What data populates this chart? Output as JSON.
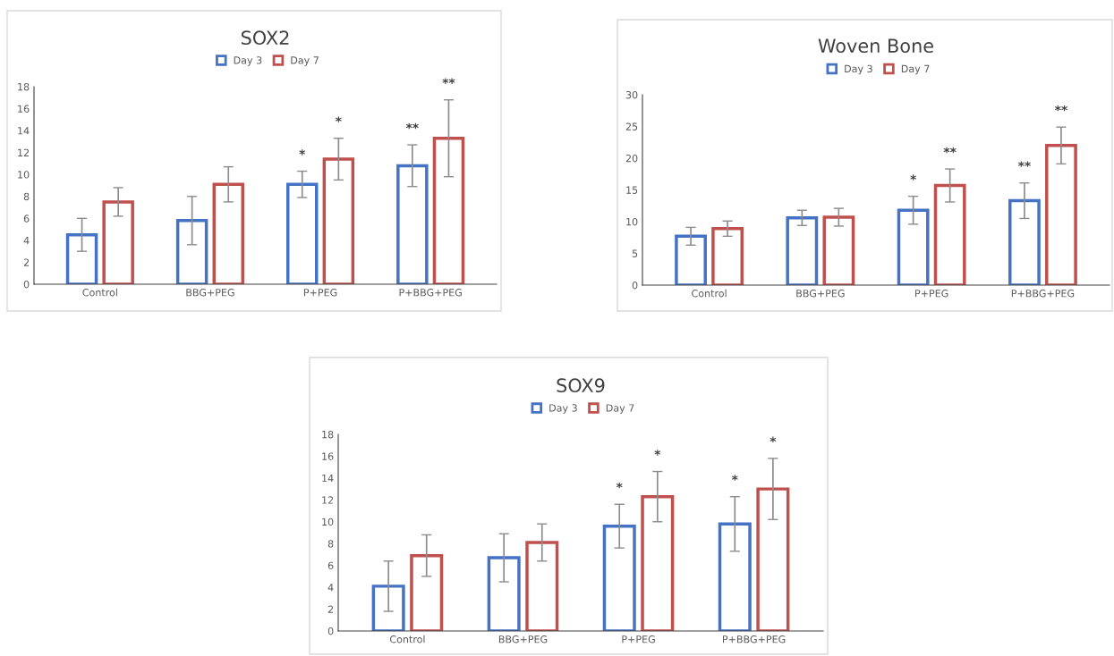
{
  "chart_data": [
    {
      "type": "bar",
      "title": "SOX2",
      "categories": [
        "Control",
        "BBG+PEG",
        "P+PEG",
        "P+BBG+PEG"
      ],
      "ylim": [
        0,
        18
      ],
      "yticks": [
        0,
        2,
        4,
        6,
        8,
        10,
        12,
        14,
        16,
        18
      ],
      "grid": false,
      "legend": "top",
      "series": [
        {
          "name": "Day 3",
          "color": "#4472c4",
          "values": [
            4.5,
            5.8,
            9.1,
            10.8
          ],
          "errors": [
            1.5,
            2.2,
            1.2,
            1.9
          ]
        },
        {
          "name": "Day 7",
          "color": "#c0504d",
          "values": [
            7.5,
            9.1,
            11.4,
            13.3
          ],
          "errors": [
            1.3,
            1.6,
            1.9,
            3.5
          ]
        }
      ],
      "annotations": [
        "*",
        "*",
        "**",
        "**"
      ]
    },
    {
      "type": "bar",
      "title": "Woven Bone",
      "categories": [
        "Control",
        "BBG+PEG",
        "P+PEG",
        "P+BBG+PEG"
      ],
      "ylim": [
        0,
        30
      ],
      "yticks": [
        0,
        5,
        10,
        15,
        20,
        25,
        30
      ],
      "grid": false,
      "legend": "top",
      "series": [
        {
          "name": "Day 3",
          "color": "#4472c4",
          "values": [
            7.7,
            10.6,
            11.8,
            13.3
          ],
          "errors": [
            1.4,
            1.2,
            2.2,
            2.8
          ]
        },
        {
          "name": "Day 7",
          "color": "#c0504d",
          "values": [
            8.9,
            10.7,
            15.7,
            22.0
          ],
          "errors": [
            1.2,
            1.4,
            2.6,
            2.9
          ]
        }
      ],
      "annotations": [
        "*",
        "**",
        "**",
        "**"
      ]
    },
    {
      "type": "bar",
      "title": "SOX9",
      "categories": [
        "Control",
        "BBG+PEG",
        "P+PEG",
        "P+BBG+PEG"
      ],
      "ylim": [
        0,
        18
      ],
      "yticks": [
        0,
        2,
        4,
        6,
        8,
        10,
        12,
        14,
        16,
        18
      ],
      "grid": false,
      "legend": "top",
      "series": [
        {
          "name": "Day 3",
          "color": "#4472c4",
          "values": [
            4.1,
            6.7,
            9.6,
            9.8
          ],
          "errors": [
            2.3,
            2.2,
            2.0,
            2.5
          ]
        },
        {
          "name": "Day 7",
          "color": "#c0504d",
          "values": [
            6.9,
            8.1,
            12.3,
            13.0
          ],
          "errors": [
            1.9,
            1.7,
            2.3,
            2.8
          ]
        }
      ],
      "annotations": [
        "*",
        "*",
        "*",
        "*"
      ]
    }
  ]
}
